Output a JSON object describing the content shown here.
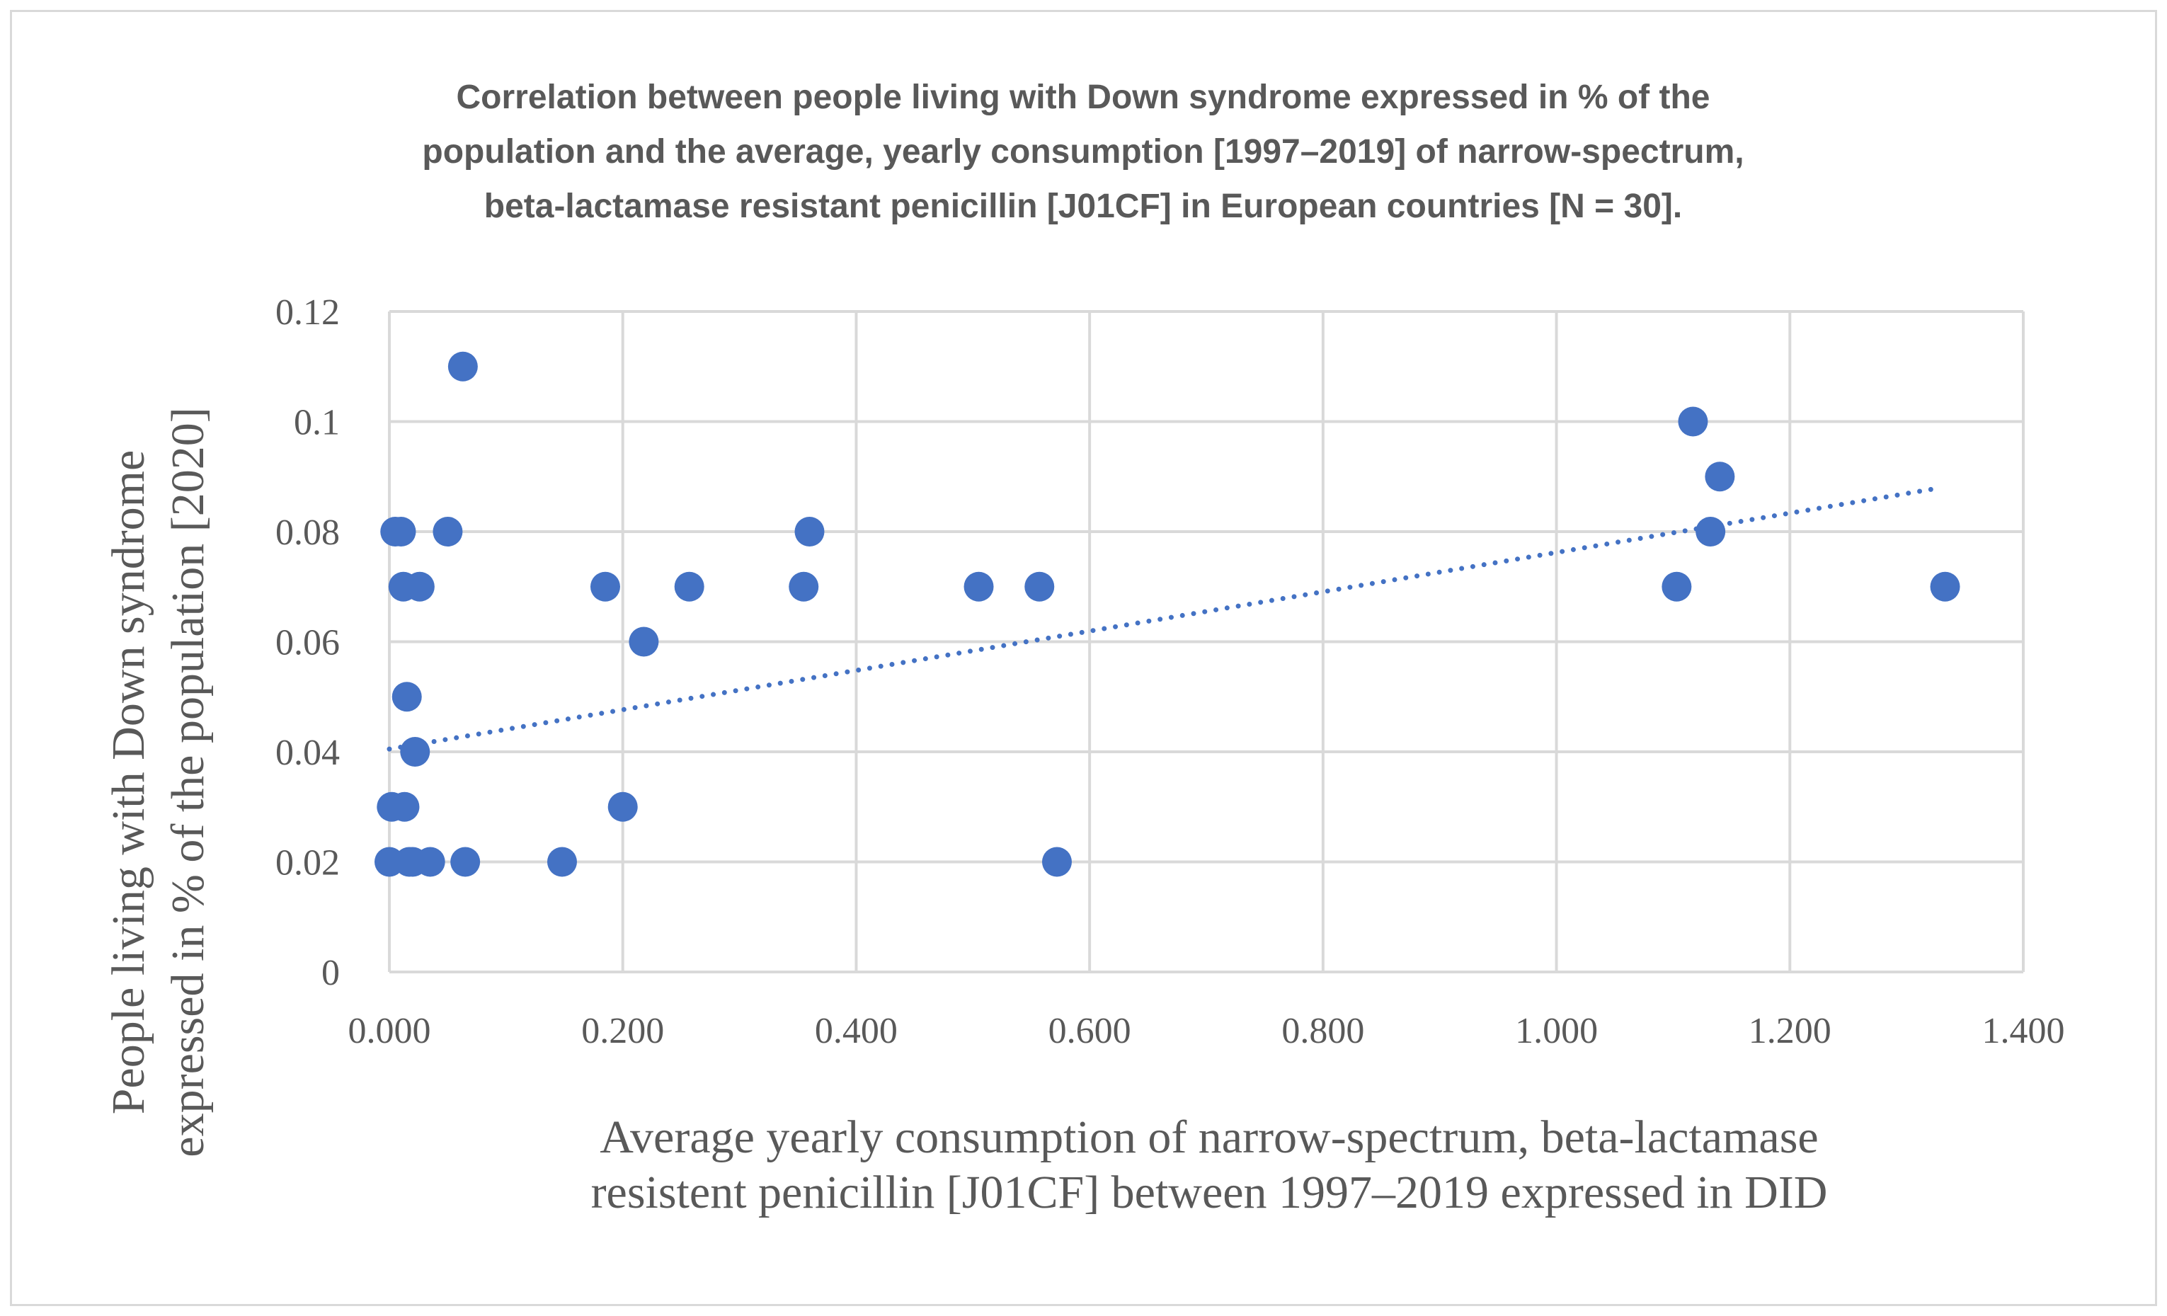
{
  "chart_data": {
    "type": "scatter",
    "title_lines": [
      "Correlation between people living with Down syndrome expressed in % of the",
      "population and the average, yearly consumption [1997–2019] of narrow-spectrum,",
      "beta-lactamase resistant penicillin [J01CF] in European countries [N = 30]."
    ],
    "xlabel_lines": [
      "Average yearly consumption of narrow-spectrum, beta-lactamase",
      "resistent penicillin [J01CF] between 1997–2019 expressed in DID"
    ],
    "ylabel_lines": [
      "People living with Down syndrome",
      "expressed in % of the population [2020]"
    ],
    "xlim": [
      0,
      1.4
    ],
    "ylim": [
      0,
      0.12
    ],
    "x_ticks": [
      "0.000",
      "0.200",
      "0.400",
      "0.600",
      "0.800",
      "1.000",
      "1.200",
      "1.400"
    ],
    "y_ticks": [
      "0",
      "0.02",
      "0.04",
      "0.06",
      "0.08",
      "0.1",
      "0.12"
    ],
    "grid": true,
    "legend": false,
    "marker_color": "#4472c4",
    "trendline": {
      "type": "linear",
      "style": "dotted",
      "x_range": [
        0.0,
        1.33
      ],
      "y_start": 0.0405,
      "y_end": 0.088
    },
    "points": [
      {
        "x": 0.0,
        "y": 0.02
      },
      {
        "x": 0.002,
        "y": 0.03
      },
      {
        "x": 0.005,
        "y": 0.08
      },
      {
        "x": 0.01,
        "y": 0.08
      },
      {
        "x": 0.012,
        "y": 0.07
      },
      {
        "x": 0.013,
        "y": 0.03
      },
      {
        "x": 0.015,
        "y": 0.05
      },
      {
        "x": 0.017,
        "y": 0.02
      },
      {
        "x": 0.02,
        "y": 0.02
      },
      {
        "x": 0.022,
        "y": 0.04
      },
      {
        "x": 0.026,
        "y": 0.07
      },
      {
        "x": 0.035,
        "y": 0.02
      },
      {
        "x": 0.05,
        "y": 0.08
      },
      {
        "x": 0.063,
        "y": 0.11
      },
      {
        "x": 0.065,
        "y": 0.02
      },
      {
        "x": 0.148,
        "y": 0.02
      },
      {
        "x": 0.185,
        "y": 0.07
      },
      {
        "x": 0.2,
        "y": 0.03
      },
      {
        "x": 0.218,
        "y": 0.06
      },
      {
        "x": 0.257,
        "y": 0.07
      },
      {
        "x": 0.355,
        "y": 0.07
      },
      {
        "x": 0.36,
        "y": 0.08
      },
      {
        "x": 0.505,
        "y": 0.07
      },
      {
        "x": 0.557,
        "y": 0.07
      },
      {
        "x": 0.572,
        "y": 0.02
      },
      {
        "x": 1.103,
        "y": 0.07
      },
      {
        "x": 1.117,
        "y": 0.1
      },
      {
        "x": 1.132,
        "y": 0.08
      },
      {
        "x": 1.14,
        "y": 0.09
      },
      {
        "x": 1.333,
        "y": 0.07
      }
    ]
  }
}
